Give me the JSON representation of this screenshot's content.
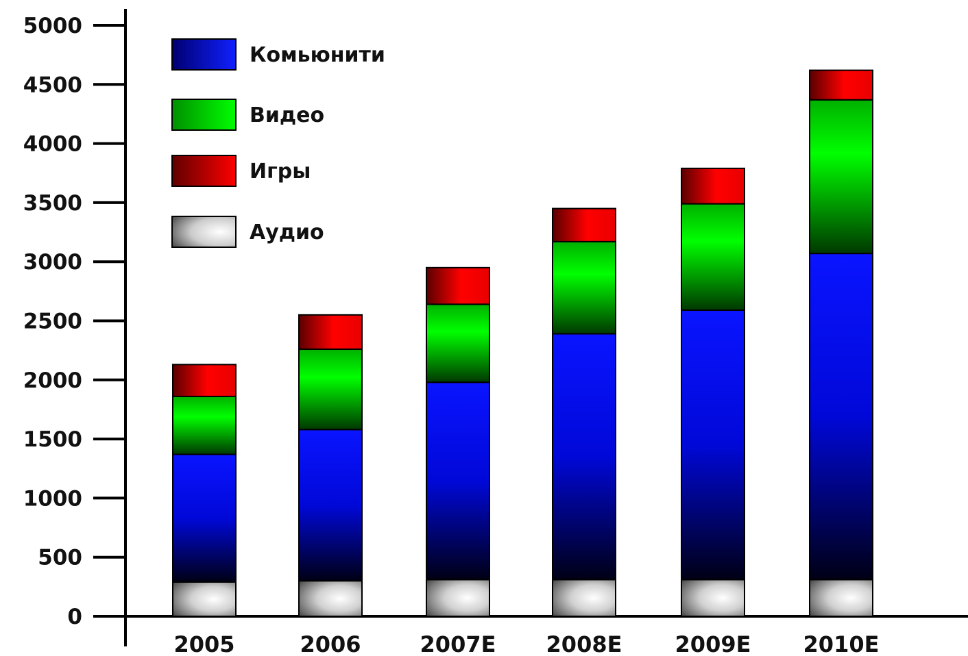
{
  "chart_data": {
    "type": "bar",
    "stacked": true,
    "categories": [
      "2005",
      "2006",
      "2007E",
      "2008E",
      "2009E",
      "2010E"
    ],
    "series": [
      {
        "name": "Аудио",
        "values": [
          290,
          300,
          310,
          310,
          310,
          310
        ]
      },
      {
        "name": "Комьюнити",
        "values": [
          1080,
          1280,
          1670,
          2080,
          2280,
          2760
        ]
      },
      {
        "name": "Видео",
        "values": [
          490,
          680,
          660,
          780,
          900,
          1300
        ]
      },
      {
        "name": "Игры",
        "values": [
          270,
          290,
          310,
          280,
          300,
          250
        ]
      }
    ],
    "legend_order": [
      "Комьюнити",
      "Видео",
      "Игры",
      "Аудио"
    ],
    "ylim": [
      0,
      5000
    ],
    "yticks": [
      "0",
      "500",
      "1000",
      "1500",
      "2000",
      "2500",
      "3000",
      "3500",
      "4000",
      "4500",
      "5000"
    ],
    "grid": false,
    "legend_position": "top-left",
    "title": "",
    "xlabel": "",
    "ylabel": ""
  },
  "colors": {
    "Комьюнити": "#0a14ff",
    "Видео": "#00f000",
    "Игры": "#ff0000",
    "Аудио": "#ffffff"
  }
}
